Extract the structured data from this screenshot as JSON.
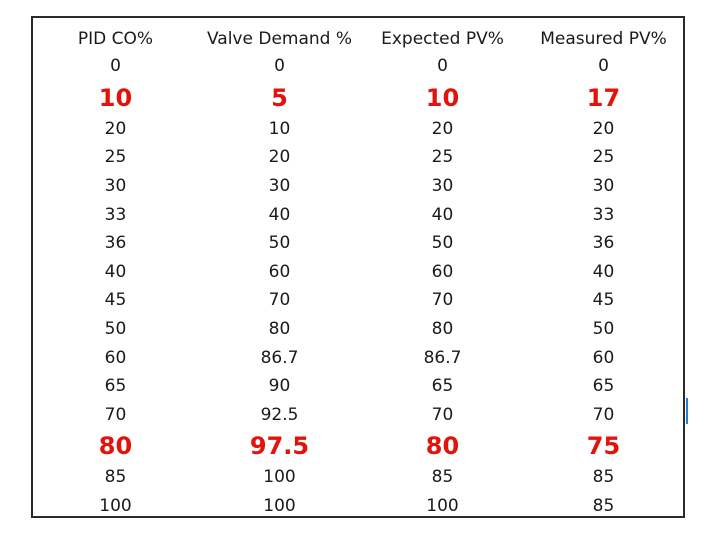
{
  "table": {
    "headers": [
      "PID CO%",
      "Valve Demand %",
      "Expected PV%",
      "Measured PV%"
    ],
    "rows": [
      {
        "values": [
          "0",
          "0",
          "0",
          "0"
        ],
        "highlight": false
      },
      {
        "values": [
          "10",
          "5",
          "10",
          "17"
        ],
        "highlight": true
      },
      {
        "values": [
          "20",
          "10",
          "20",
          "20"
        ],
        "highlight": false
      },
      {
        "values": [
          "25",
          "20",
          "25",
          "25"
        ],
        "highlight": false
      },
      {
        "values": [
          "30",
          "30",
          "30",
          "30"
        ],
        "highlight": false
      },
      {
        "values": [
          "33",
          "40",
          "40",
          "33"
        ],
        "highlight": false
      },
      {
        "values": [
          "36",
          "50",
          "50",
          "36"
        ],
        "highlight": false
      },
      {
        "values": [
          "40",
          "60",
          "60",
          "40"
        ],
        "highlight": false
      },
      {
        "values": [
          "45",
          "70",
          "70",
          "45"
        ],
        "highlight": false
      },
      {
        "values": [
          "50",
          "80",
          "80",
          "50"
        ],
        "highlight": false
      },
      {
        "values": [
          "60",
          "86.7",
          "86.7",
          "60"
        ],
        "highlight": false
      },
      {
        "values": [
          "65",
          "90",
          "65",
          "65"
        ],
        "highlight": false
      },
      {
        "values": [
          "70",
          "92.5",
          "70",
          "70"
        ],
        "highlight": false
      },
      {
        "values": [
          "80",
          "97.5",
          "80",
          "75"
        ],
        "highlight": true
      },
      {
        "values": [
          "85",
          "100",
          "85",
          "85"
        ],
        "highlight": false
      },
      {
        "values": [
          "100",
          "100",
          "100",
          "85"
        ],
        "highlight": false
      }
    ],
    "highlight_color": "#e3120b",
    "text_color": "#1a1a1a"
  }
}
